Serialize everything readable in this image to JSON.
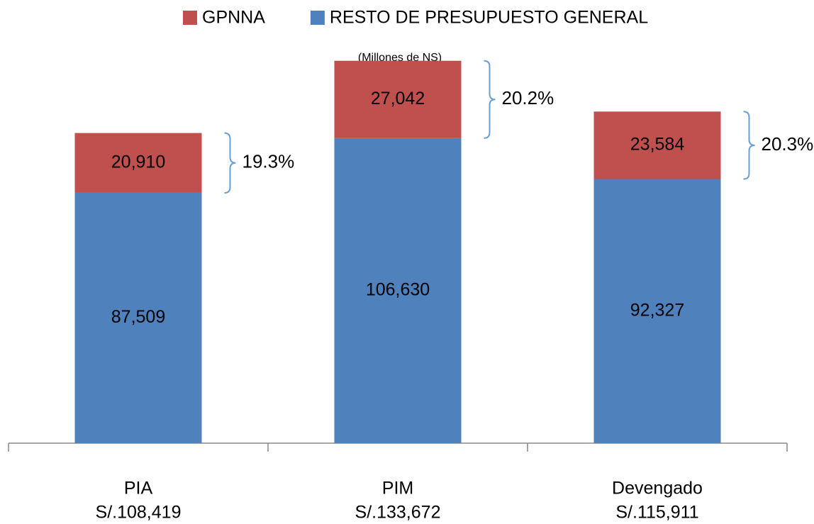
{
  "chart_data": {
    "type": "stacked_bar",
    "subtitle": "(Millones de NS)",
    "categories": [
      "PIA",
      "PIM",
      "Devengado"
    ],
    "category_totals": [
      "S/.108,419",
      "S/.133,672",
      "S/.115,911"
    ],
    "series": [
      {
        "name": "RESTO DE PRESUPUESTO GENERAL",
        "color": "#4f81bd",
        "values": [
          87509,
          106630,
          92327
        ],
        "value_labels": [
          "87,509",
          "106,630",
          "92,327"
        ]
      },
      {
        "name": "GPNNA",
        "color": "#c0504d",
        "values": [
          20910,
          27042,
          23584
        ],
        "value_labels": [
          "20,910",
          "27,042",
          "23,584"
        ]
      }
    ],
    "legend_order": [
      1,
      0
    ],
    "annotations": [
      "19.3%",
      "20.2%",
      "20.3%"
    ],
    "ylim": [
      0,
      145000
    ]
  }
}
